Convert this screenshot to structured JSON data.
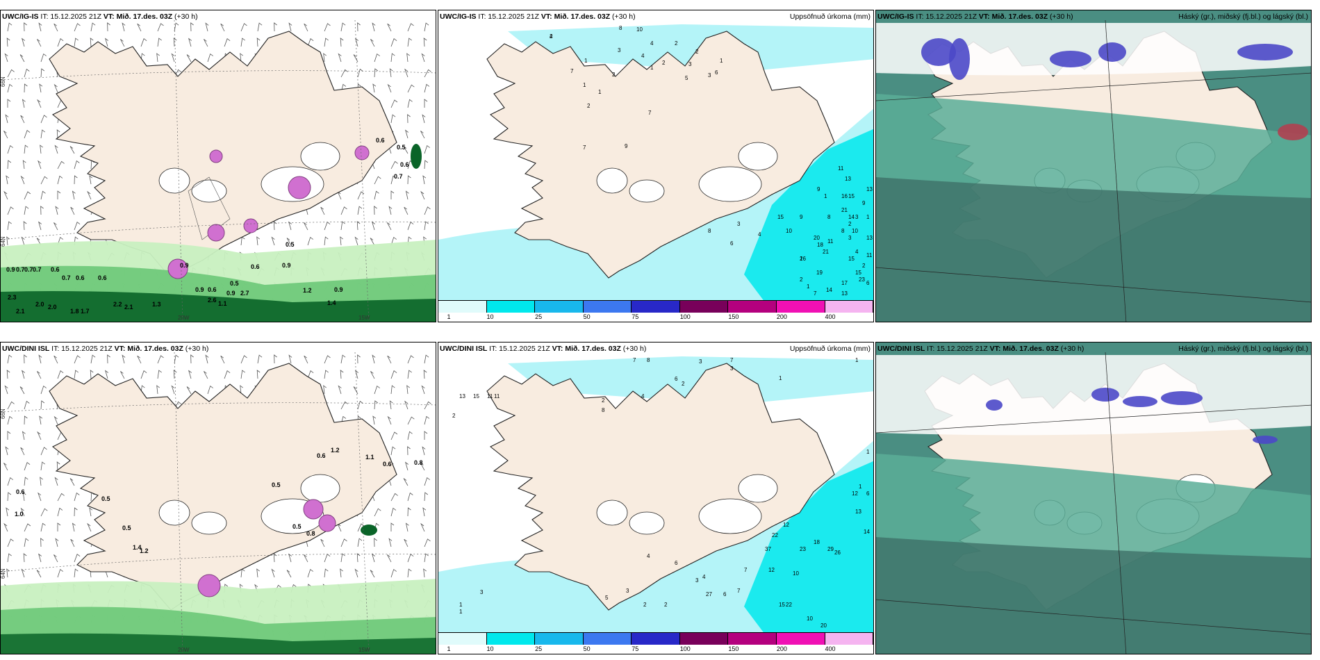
{
  "rows": [
    {
      "panels": [
        {
          "model": "UWC/IG-IS",
          "it": "IT: 15.12.2025 21Z",
          "vt": "VT: Mið. 17.des. 03Z",
          "lead": "(+30 h)",
          "right": "",
          "kind": "wind",
          "labels": [
            "0.9",
            "0.7",
            "0.7",
            "0.7",
            "0.6",
            "0.7",
            "0.6",
            "0.6",
            "2.3",
            "2.0",
            "2.0",
            "2.1",
            "1.8",
            "1.7",
            "2.2",
            "2.1",
            "1.3",
            "0.9",
            "0.9",
            "0.6",
            "0.5",
            "0.6",
            "0.9",
            "0.9",
            "0.6",
            "0.5",
            "0.6",
            "0.7",
            "0.5",
            "1.2",
            "0.9",
            "2.7",
            "2.6",
            "1.1",
            "1.4"
          ]
        },
        {
          "model": "UWC/IG-IS",
          "it": "IT: 15.12.2025 21Z",
          "vt": "VT: Mið. 17.des. 03Z",
          "lead": "(+30 h)",
          "right": "Uppsöfnuð úrkoma (mm)",
          "kind": "precip",
          "labels": [
            "2",
            "8",
            "10",
            "4",
            "3",
            "4",
            "2",
            "2",
            "6",
            "2",
            "5",
            "1",
            "3",
            "3",
            "1",
            "7",
            "1",
            "1",
            "1",
            "2",
            "2",
            "7",
            "9",
            "7",
            "4",
            "8",
            "6",
            "3",
            "15",
            "9",
            "11",
            "13",
            "16",
            "14",
            "13",
            "10",
            "11",
            "15",
            "23",
            "13",
            "21",
            "17",
            "11",
            "13",
            "19",
            "7",
            "14",
            "9",
            "10",
            "26",
            "20",
            "21",
            "8",
            "15",
            "18",
            "8",
            "6",
            "4",
            "15",
            "9",
            "2",
            "3",
            "3",
            "1",
            "2",
            "1",
            "1",
            "2",
            "1",
            "4"
          ]
        },
        {
          "model": "UWC/IG-IS",
          "it": "IT: 15.12.2025 21Z",
          "vt": "VT: Mið. 17.des. 03Z",
          "lead": "(+30 h)",
          "right": "Háský (gr.), miðský (fj.bl.) og lágský (bl.)",
          "kind": "cloud",
          "labels": []
        }
      ]
    },
    {
      "panels": [
        {
          "model": "UWC/DINI ISL",
          "it": "IT: 15.12.2025 21Z",
          "vt": "VT: Mið. 17.des. 03Z",
          "lead": "(+30 h)",
          "right": "",
          "kind": "wind",
          "labels": [
            "0.6",
            "0.5",
            "1.0",
            "0.5",
            "1.4",
            "1.2",
            "0.6",
            "0.8",
            "0.6",
            "1.2",
            "1.1",
            "0.5",
            "0.5",
            "0.8"
          ]
        },
        {
          "model": "UWC/DINI ISL",
          "it": "IT: 15.12.2025 21Z",
          "vt": "VT: Mið. 17.des. 03Z",
          "lead": "(+30 h)",
          "right": "Uppsöfnuð úrkoma (mm)",
          "kind": "precip",
          "labels": [
            "7",
            "8",
            "3",
            "7",
            "3",
            "1",
            "1",
            "6",
            "13",
            "15",
            "11",
            "11",
            "2",
            "2",
            "8",
            "4",
            "2",
            "1",
            "1",
            "12",
            "6",
            "13",
            "14",
            "29",
            "26",
            "23",
            "18",
            "12",
            "22",
            "37",
            "7",
            "12",
            "10",
            "22",
            "15",
            "10",
            "20",
            "7",
            "6",
            "27",
            "4",
            "6",
            "4",
            "3",
            "2",
            "2",
            "3",
            "5",
            "3",
            "1",
            "1"
          ]
        },
        {
          "model": "UWC/DINI ISL",
          "it": "IT: 15.12.2025 21Z",
          "vt": "VT: Mið. 17.des. 03Z",
          "lead": "(+30 h)",
          "right": "Háský (gr.), miðský (fj.bl.) og lágský (bl.)",
          "kind": "cloud",
          "labels": []
        }
      ]
    }
  ],
  "colorbar": {
    "ticks": [
      "1",
      "10",
      "25",
      "50",
      "75",
      "100",
      "150",
      "200",
      "400"
    ],
    "colors": [
      "#e0fbfb",
      "#00e8ec",
      "#18b8ec",
      "#3c78f0",
      "#2828c8",
      "#78005a",
      "#b4007e",
      "#f010b4",
      "#f5b4f0"
    ]
  },
  "geo_labels": {
    "lat66": "66N",
    "lat64": "64N",
    "lon20": "20W",
    "lon15": "15W"
  },
  "colors": {
    "land": "#f8ece0",
    "precip_light": "#b4f4f8",
    "precip_mid": "#00e8ec",
    "wind_light": "#c8f0c0",
    "wind_mid": "#6cc878",
    "wind_dark": "#0a6428",
    "pink": "#d070d0",
    "sea_cloud": "#5aae98",
    "dark_cloud": "#3e7068"
  }
}
